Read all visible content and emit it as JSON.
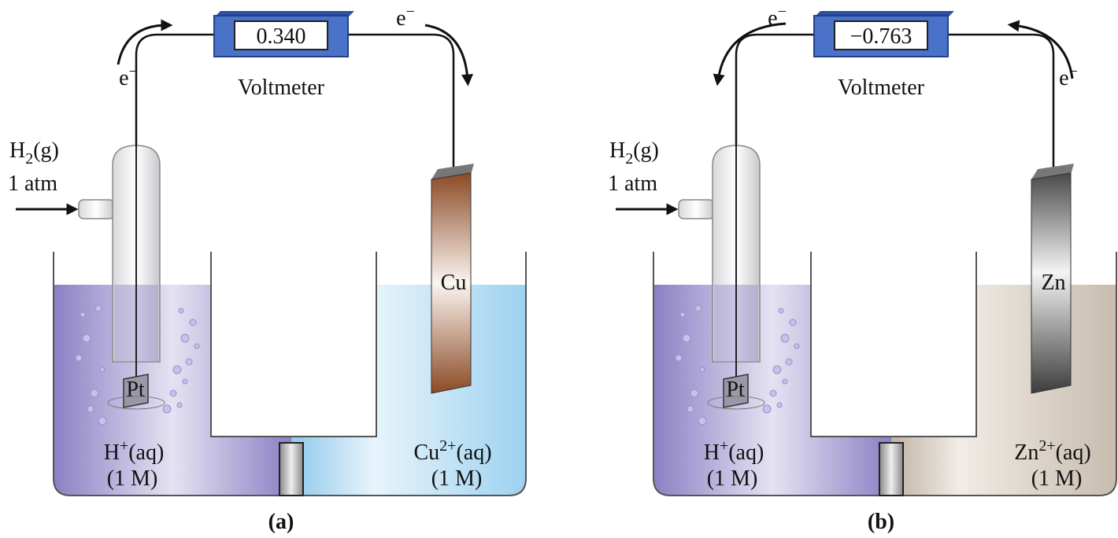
{
  "panels": [
    {
      "voltmeter": {
        "reading": "0.340",
        "label": "Voltmeter"
      },
      "electrons": [
        {
          "base": "e",
          "sup": "−"
        },
        {
          "base": "e",
          "sup": "−"
        }
      ],
      "gas": {
        "formula": {
          "base": "H",
          "sub": "2",
          "rest": "(g)"
        },
        "pressure": "1 atm"
      },
      "anode_metal": "Pt",
      "cathode": "Cu",
      "left_solution": {
        "ion": {
          "base": "H",
          "sup": "+",
          "rest": "(aq)"
        },
        "concentration": "(1 M)"
      },
      "right_solution": {
        "ion": {
          "base": "Cu",
          "sup": "2+",
          "rest": "(aq)"
        },
        "concentration": "(1 M)"
      },
      "caption": "(a)"
    },
    {
      "voltmeter": {
        "reading": "−0.763",
        "label": "Voltmeter"
      },
      "electrons": [
        {
          "base": "e",
          "sup": "−"
        },
        {
          "base": "e",
          "sup": "−"
        }
      ],
      "gas": {
        "formula": {
          "base": "H",
          "sub": "2",
          "rest": "(g)"
        },
        "pressure": "1 atm"
      },
      "anode_metal": "Pt",
      "cathode": "Zn",
      "left_solution": {
        "ion": {
          "base": "H",
          "sup": "+",
          "rest": "(aq)"
        },
        "concentration": "(1 M)"
      },
      "right_solution": {
        "ion": {
          "base": "Zn",
          "sup": "2+",
          "rest": "(aq)"
        },
        "concentration": "(1 M)"
      },
      "caption": "(b)"
    }
  ]
}
